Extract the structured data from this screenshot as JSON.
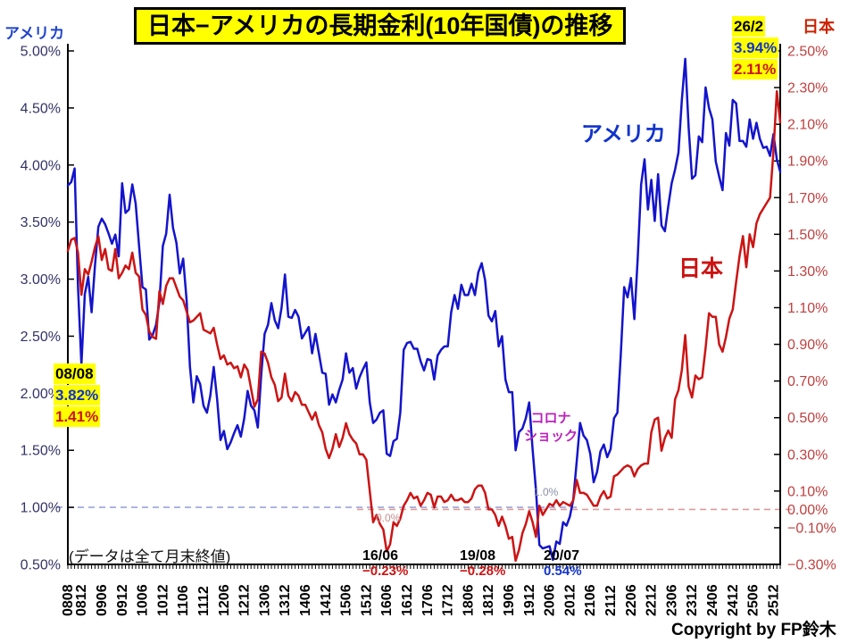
{
  "title": "日本−アメリカの長期金利(10年国債)の推移",
  "left_axis": {
    "name": "アメリカ"
  },
  "right_axis": {
    "name": "日本"
  },
  "series_labels": {
    "us": "アメリカ",
    "jp": "日本"
  },
  "annotations": {
    "start_point": {
      "date": "08/08",
      "us": "3.82%",
      "jp": "1.41%"
    },
    "end_point": {
      "date": "26/2",
      "us": "3.94%",
      "jp": "2.11%"
    },
    "corona": {
      "line1": "コロナ",
      "line2": "ショック"
    },
    "jp_low_2016": {
      "date": "16/06",
      "value": "−0.23%"
    },
    "jp_low_2019": {
      "date": "19/08",
      "value": "−0.28%"
    },
    "us_low_2020": {
      "date": "20/07",
      "value": "0.54%"
    },
    "us_ref_label": "1.0%",
    "jp_ref_label": "0.0%"
  },
  "footnote": "(データは全て月末終値)",
  "copyright": "Copyright by FP鈴木",
  "colors": {
    "us_line": "#1414CC",
    "jp_line": "#CC1414",
    "highlight": "#FFFF00",
    "corona_text": "#BB22BB",
    "left_axis_text": "#333366",
    "right_axis_text": "#C04040",
    "us_label_text": "#1133CC",
    "jp_label_text": "#CC2200"
  },
  "chart_data": {
    "type": "line",
    "title": "日本−アメリカの長期金利(10年国債)の推移",
    "x_start": "2008/08",
    "x_end": "2026/02",
    "frequency": "monthly",
    "x_tick_labels": [
      "0808",
      "0812",
      "0906",
      "0912",
      "1006",
      "1012",
      "1106",
      "1112",
      "1206",
      "1212",
      "1306",
      "1312",
      "1406",
      "1412",
      "1506",
      "1512",
      "1606",
      "1612",
      "1706",
      "1712",
      "1806",
      "1812",
      "1906",
      "1912",
      "2006",
      "2012",
      "2106",
      "2112",
      "2206",
      "2212",
      "2306",
      "2312",
      "2406",
      "2412",
      "2506",
      "2512"
    ],
    "left_axis_label": "アメリカ",
    "right_axis_label": "日本",
    "left_ylim": [
      0.5,
      5.0
    ],
    "right_ylim": [
      -0.3,
      2.5
    ],
    "left_tick_labels": [
      "5.00%",
      "4.50%",
      "4.00%",
      "3.50%",
      "3.00%",
      "2.50%",
      "2.00%",
      "1.50%",
      "1.00%",
      "0.50%"
    ],
    "right_tick_labels": [
      "2.50%",
      "2.30%",
      "2.10%",
      "1.90%",
      "1.70%",
      "1.50%",
      "1.30%",
      "1.10%",
      "0.90%",
      "0.70%",
      "0.50%",
      "0.30%",
      "0.10%",
      "0.00%",
      "−0.10%",
      "−0.30%"
    ],
    "reference_lines": [
      {
        "axis": "left",
        "value": 1.0,
        "label": "1.0%",
        "color": "#9AA4DC",
        "style": "dashed"
      },
      {
        "axis": "right",
        "value": 0.0,
        "label": "0.0%",
        "color": "#DC9A9A",
        "style": "dashed"
      }
    ],
    "series": [
      {
        "name": "アメリカ",
        "axis": "left",
        "color": "#1414CC",
        "values": [
          3.82,
          3.85,
          3.97,
          2.93,
          2.25,
          2.87,
          3.02,
          2.71,
          3.12,
          3.46,
          3.53,
          3.48,
          3.4,
          3.31,
          3.39,
          3.2,
          3.84,
          3.58,
          3.61,
          3.83,
          3.66,
          3.29,
          2.93,
          2.91,
          2.47,
          2.51,
          2.6,
          2.8,
          3.29,
          3.4,
          3.74,
          3.45,
          3.32,
          3.05,
          3.18,
          2.82,
          2.23,
          1.92,
          2.15,
          2.08,
          1.89,
          1.83,
          1.98,
          2.23,
          1.95,
          1.59,
          1.67,
          1.51,
          1.57,
          1.65,
          1.72,
          1.62,
          1.78,
          2.02,
          1.89,
          1.85,
          1.7,
          2.16,
          2.52,
          2.6,
          2.79,
          2.64,
          2.57,
          2.75,
          3.04,
          2.67,
          2.66,
          2.73,
          2.67,
          2.48,
          2.53,
          2.58,
          2.35,
          2.52,
          2.35,
          2.18,
          2.17,
          1.9,
          1.99,
          1.92,
          2.03,
          2.12,
          2.35,
          2.18,
          2.22,
          2.04,
          2.14,
          2.21,
          2.27,
          1.92,
          1.74,
          1.77,
          1.83,
          1.85,
          1.47,
          1.45,
          1.58,
          1.6,
          1.83,
          2.38,
          2.44,
          2.45,
          2.39,
          2.39,
          2.28,
          2.2,
          2.3,
          2.29,
          2.12,
          2.33,
          2.38,
          2.41,
          2.41,
          2.71,
          2.86,
          2.74,
          2.95,
          2.86,
          2.86,
          2.96,
          2.86,
          3.06,
          3.14,
          2.99,
          2.68,
          2.63,
          2.72,
          2.41,
          2.5,
          2.12,
          2.01,
          2.01,
          1.5,
          1.66,
          1.69,
          1.78,
          1.92,
          1.51,
          1.15,
          0.67,
          0.64,
          0.65,
          0.66,
          0.54,
          0.7,
          0.68,
          0.87,
          0.84,
          0.92,
          1.07,
          1.4,
          1.74,
          1.63,
          1.59,
          1.47,
          1.22,
          1.31,
          1.49,
          1.55,
          1.44,
          1.51,
          1.78,
          1.83,
          2.34,
          2.93,
          2.84,
          3.01,
          2.65,
          3.19,
          3.83,
          4.05,
          3.61,
          3.87,
          3.51,
          3.92,
          3.47,
          3.42,
          3.64,
          3.84,
          3.96,
          4.11,
          4.57,
          4.93,
          4.33,
          3.88,
          3.91,
          4.25,
          4.2,
          4.68,
          4.5,
          4.4,
          4.03,
          3.9,
          3.78,
          4.28,
          4.17,
          4.57,
          4.54,
          4.21,
          4.21,
          4.16,
          4.4,
          4.23,
          4.37,
          4.23,
          4.15,
          4.16,
          4.08,
          4.27,
          4.05,
          3.94
        ]
      },
      {
        "name": "日本",
        "axis": "right",
        "color": "#CC1414",
        "values": [
          1.41,
          1.47,
          1.48,
          1.4,
          1.17,
          1.31,
          1.28,
          1.35,
          1.43,
          1.49,
          1.36,
          1.42,
          1.31,
          1.3,
          1.42,
          1.26,
          1.29,
          1.33,
          1.31,
          1.4,
          1.29,
          1.27,
          1.09,
          1.06,
          0.97,
          0.94,
          0.93,
          1.19,
          1.12,
          1.22,
          1.26,
          1.26,
          1.21,
          1.16,
          1.14,
          1.08,
          1.02,
          1.03,
          1.05,
          1.07,
          0.98,
          0.97,
          0.96,
          0.99,
          0.9,
          0.82,
          0.84,
          0.79,
          0.8,
          0.77,
          0.78,
          0.72,
          0.79,
          0.76,
          0.66,
          0.56,
          0.6,
          0.86,
          0.85,
          0.8,
          0.72,
          0.68,
          0.59,
          0.61,
          0.74,
          0.62,
          0.59,
          0.64,
          0.62,
          0.57,
          0.57,
          0.53,
          0.49,
          0.53,
          0.46,
          0.42,
          0.33,
          0.28,
          0.33,
          0.41,
          0.34,
          0.39,
          0.47,
          0.41,
          0.38,
          0.36,
          0.3,
          0.3,
          0.27,
          0.1,
          -0.07,
          -0.03,
          -0.08,
          -0.11,
          -0.23,
          -0.19,
          -0.07,
          -0.09,
          -0.05,
          0.02,
          0.05,
          0.09,
          0.06,
          0.07,
          0.02,
          0.05,
          0.09,
          0.08,
          0.01,
          0.07,
          0.07,
          0.04,
          0.05,
          0.08,
          0.05,
          0.05,
          0.06,
          0.04,
          0.04,
          0.06,
          0.11,
          0.13,
          0.13,
          0.09,
          0.0,
          0.0,
          -0.03,
          -0.09,
          -0.04,
          -0.09,
          -0.16,
          -0.15,
          -0.28,
          -0.22,
          -0.13,
          -0.08,
          -0.01,
          -0.07,
          -0.15,
          0.02,
          -0.03,
          0.0,
          0.03,
          0.02,
          0.05,
          0.02,
          0.04,
          0.03,
          0.02,
          0.05,
          0.16,
          0.09,
          0.09,
          0.08,
          0.05,
          0.02,
          0.02,
          0.07,
          0.1,
          0.06,
          0.07,
          0.18,
          0.19,
          0.21,
          0.23,
          0.24,
          0.23,
          0.18,
          0.22,
          0.24,
          0.25,
          0.25,
          0.42,
          0.49,
          0.5,
          0.32,
          0.39,
          0.43,
          0.39,
          0.6,
          0.65,
          0.76,
          0.95,
          0.67,
          0.61,
          0.73,
          0.71,
          0.72,
          0.88,
          1.07,
          1.05,
          1.05,
          0.9,
          0.86,
          0.94,
          1.04,
          1.09,
          1.24,
          1.38,
          1.49,
          1.32,
          1.5,
          1.43,
          1.56,
          1.61,
          1.64,
          1.67,
          1.7,
          1.95,
          2.28,
          2.11
        ]
      }
    ],
    "annotated_points": {
      "start": {
        "date": "2008/08",
        "us": 3.82,
        "jp": 1.41
      },
      "end": {
        "date": "2026/02",
        "us": 3.94,
        "jp": 2.11
      },
      "jp_min_2016_06": -0.23,
      "jp_min_2019_08": -0.28,
      "us_min_2020_07": 0.54
    }
  }
}
